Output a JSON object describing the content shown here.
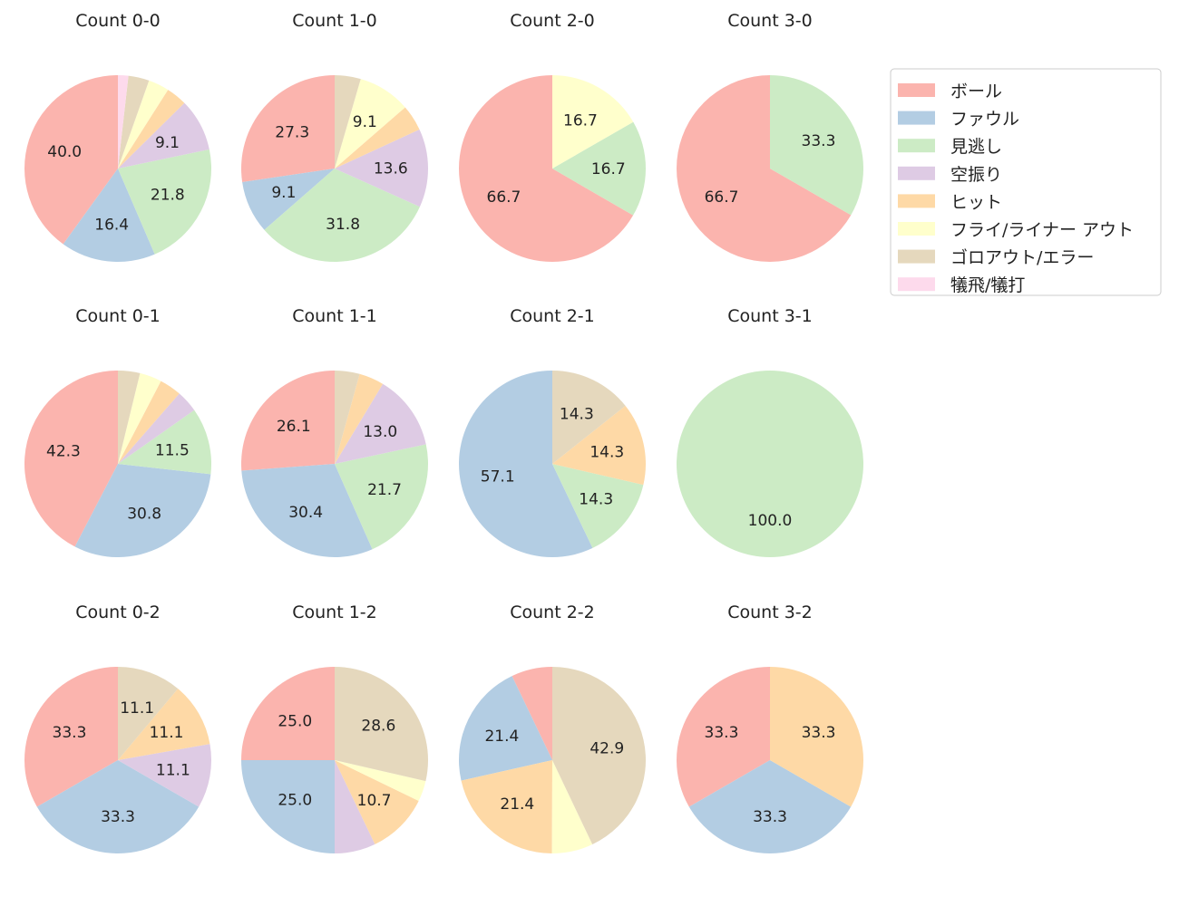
{
  "colors": {
    "ball": "#fbb4ae",
    "foul": "#b3cde3",
    "called_strike": "#ccebc5",
    "swinging_strike": "#decbe4",
    "hit": "#fed9a6",
    "fly_liner_out": "#ffffcc",
    "ground_out_error": "#e5d8bd",
    "sacrifice": "#fddaec"
  },
  "chart_data": {
    "type": "pie",
    "legend_position": "top-right",
    "legend": [
      {
        "key": "ball",
        "label": "ボール"
      },
      {
        "key": "foul",
        "label": "ファウル"
      },
      {
        "key": "called_strike",
        "label": "見逃し"
      },
      {
        "key": "swinging_strike",
        "label": "空振り"
      },
      {
        "key": "hit",
        "label": "ヒット"
      },
      {
        "key": "fly_liner_out",
        "label": "フライ/ライナー アウト"
      },
      {
        "key": "ground_out_error",
        "label": "ゴロアウト/エラー"
      },
      {
        "key": "sacrifice",
        "label": "犠飛/犠打"
      }
    ],
    "pies": [
      {
        "title": "Count 0-0",
        "slices": [
          {
            "key": "ball",
            "value": 40.0,
            "label": "40.0"
          },
          {
            "key": "foul",
            "value": 16.4,
            "label": "16.4"
          },
          {
            "key": "called_strike",
            "value": 21.8,
            "label": "21.8"
          },
          {
            "key": "swinging_strike",
            "value": 9.1,
            "label": "9.1"
          },
          {
            "key": "hit",
            "value": 3.6,
            "label": ""
          },
          {
            "key": "fly_liner_out",
            "value": 3.6,
            "label": ""
          },
          {
            "key": "ground_out_error",
            "value": 3.6,
            "label": ""
          },
          {
            "key": "sacrifice",
            "value": 1.8,
            "label": ""
          }
        ]
      },
      {
        "title": "Count 1-0",
        "slices": [
          {
            "key": "ball",
            "value": 27.3,
            "label": "27.3"
          },
          {
            "key": "foul",
            "value": 9.1,
            "label": "9.1"
          },
          {
            "key": "called_strike",
            "value": 31.8,
            "label": "31.8"
          },
          {
            "key": "swinging_strike",
            "value": 13.6,
            "label": "13.6"
          },
          {
            "key": "hit",
            "value": 4.5,
            "label": ""
          },
          {
            "key": "fly_liner_out",
            "value": 9.1,
            "label": "9.1"
          },
          {
            "key": "ground_out_error",
            "value": 4.5,
            "label": ""
          }
        ]
      },
      {
        "title": "Count 2-0",
        "slices": [
          {
            "key": "ball",
            "value": 66.7,
            "label": "66.7"
          },
          {
            "key": "called_strike",
            "value": 16.7,
            "label": "16.7"
          },
          {
            "key": "fly_liner_out",
            "value": 16.7,
            "label": "16.7"
          }
        ]
      },
      {
        "title": "Count 3-0",
        "slices": [
          {
            "key": "ball",
            "value": 66.7,
            "label": "66.7"
          },
          {
            "key": "called_strike",
            "value": 33.3,
            "label": "33.3"
          }
        ]
      },
      {
        "title": "Count 0-1",
        "slices": [
          {
            "key": "ball",
            "value": 42.3,
            "label": "42.3"
          },
          {
            "key": "foul",
            "value": 30.8,
            "label": "30.8"
          },
          {
            "key": "called_strike",
            "value": 11.5,
            "label": "11.5"
          },
          {
            "key": "swinging_strike",
            "value": 3.8,
            "label": ""
          },
          {
            "key": "hit",
            "value": 3.8,
            "label": ""
          },
          {
            "key": "fly_liner_out",
            "value": 3.8,
            "label": ""
          },
          {
            "key": "ground_out_error",
            "value": 3.8,
            "label": ""
          }
        ]
      },
      {
        "title": "Count 1-1",
        "slices": [
          {
            "key": "ball",
            "value": 26.1,
            "label": "26.1"
          },
          {
            "key": "foul",
            "value": 30.4,
            "label": "30.4"
          },
          {
            "key": "called_strike",
            "value": 21.7,
            "label": "21.7"
          },
          {
            "key": "swinging_strike",
            "value": 13.0,
            "label": "13.0"
          },
          {
            "key": "hit",
            "value": 4.3,
            "label": ""
          },
          {
            "key": "ground_out_error",
            "value": 4.3,
            "label": ""
          }
        ]
      },
      {
        "title": "Count 2-1",
        "slices": [
          {
            "key": "foul",
            "value": 57.1,
            "label": "57.1"
          },
          {
            "key": "called_strike",
            "value": 14.3,
            "label": "14.3"
          },
          {
            "key": "hit",
            "value": 14.3,
            "label": "14.3"
          },
          {
            "key": "ground_out_error",
            "value": 14.3,
            "label": "14.3"
          }
        ]
      },
      {
        "title": "Count 3-1",
        "slices": [
          {
            "key": "called_strike",
            "value": 100.0,
            "label": "100.0"
          }
        ]
      },
      {
        "title": "Count 0-2",
        "slices": [
          {
            "key": "ball",
            "value": 33.3,
            "label": "33.3"
          },
          {
            "key": "foul",
            "value": 33.3,
            "label": "33.3"
          },
          {
            "key": "swinging_strike",
            "value": 11.1,
            "label": "11.1"
          },
          {
            "key": "hit",
            "value": 11.1,
            "label": "11.1"
          },
          {
            "key": "ground_out_error",
            "value": 11.1,
            "label": "11.1"
          }
        ]
      },
      {
        "title": "Count 1-2",
        "slices": [
          {
            "key": "ball",
            "value": 25.0,
            "label": "25.0"
          },
          {
            "key": "foul",
            "value": 25.0,
            "label": "25.0"
          },
          {
            "key": "swinging_strike",
            "value": 7.1,
            "label": ""
          },
          {
            "key": "hit",
            "value": 10.7,
            "label": "10.7"
          },
          {
            "key": "fly_liner_out",
            "value": 3.6,
            "label": ""
          },
          {
            "key": "ground_out_error",
            "value": 28.6,
            "label": "28.6"
          }
        ]
      },
      {
        "title": "Count 2-2",
        "slices": [
          {
            "key": "ball",
            "value": 7.1,
            "label": ""
          },
          {
            "key": "foul",
            "value": 21.4,
            "label": "21.4"
          },
          {
            "key": "hit",
            "value": 21.4,
            "label": "21.4"
          },
          {
            "key": "fly_liner_out",
            "value": 7.1,
            "label": ""
          },
          {
            "key": "ground_out_error",
            "value": 42.9,
            "label": "42.9"
          }
        ]
      },
      {
        "title": "Count 3-2",
        "slices": [
          {
            "key": "ball",
            "value": 33.3,
            "label": "33.3"
          },
          {
            "key": "foul",
            "value": 33.3,
            "label": "33.3"
          },
          {
            "key": "hit",
            "value": 33.3,
            "label": "33.3"
          }
        ]
      }
    ]
  }
}
